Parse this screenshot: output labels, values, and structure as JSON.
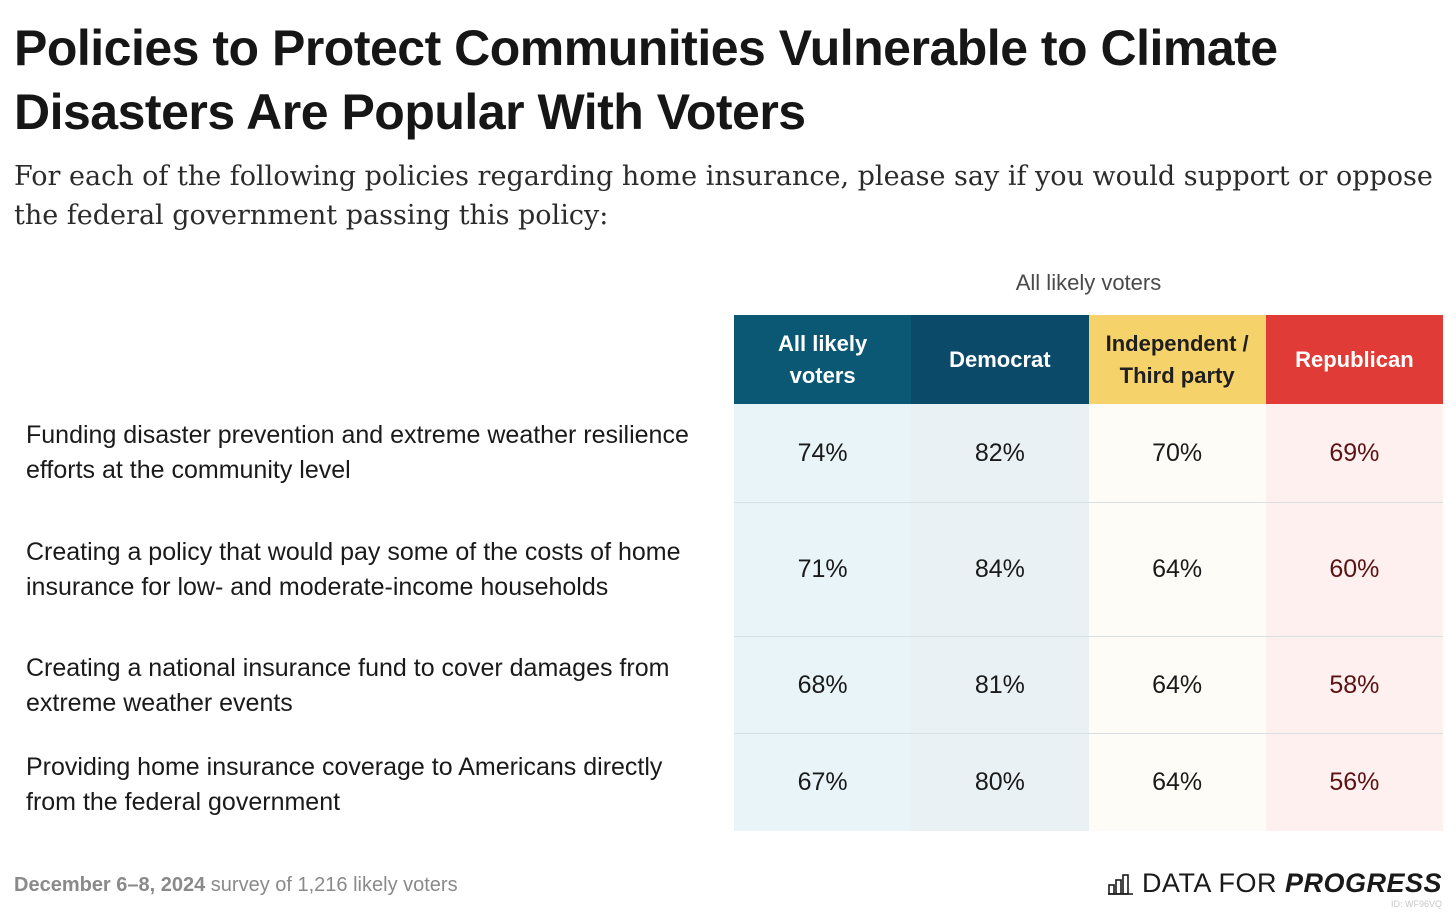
{
  "title": "Policies to Protect Communities Vulnerable to Climate Disasters Are Popular With Voters",
  "subtitle": "For each of the following policies regarding home insurance, please say if you would support or oppose the federal government passing this policy:",
  "chart_data": {
    "type": "table",
    "group_label": "All likely voters",
    "columns": [
      {
        "name": "All likely voters",
        "color": "#0b5874"
      },
      {
        "name": "Democrat",
        "color": "#0c4a6a"
      },
      {
        "name": "Independent / Third party",
        "color": "#f5d26a"
      },
      {
        "name": "Republican",
        "color": "#e03b36"
      }
    ],
    "rows": [
      {
        "label": "Funding disaster prevention and extreme weather resilience efforts at the community level",
        "values": [
          "74%",
          "82%",
          "70%",
          "69%"
        ]
      },
      {
        "label": "Creating a policy that would pay some of the costs of home insurance for low- and moderate-income households",
        "values": [
          "71%",
          "84%",
          "64%",
          "60%"
        ]
      },
      {
        "label": "Creating a national insurance fund to cover damages from extreme weather events",
        "values": [
          "68%",
          "81%",
          "64%",
          "58%"
        ]
      },
      {
        "label": "Providing home insurance coverage to Americans directly from the federal government",
        "values": [
          "67%",
          "80%",
          "64%",
          "56%"
        ]
      }
    ]
  },
  "footer": {
    "date": "December 6–8, 2024",
    "rest": " survey of 1,216 likely voters"
  },
  "logo": {
    "light": "DATA FOR",
    "strong": "PROGRESS",
    "icon": "bar-chart-icon"
  },
  "chart_id": "ID: WF96VQ"
}
